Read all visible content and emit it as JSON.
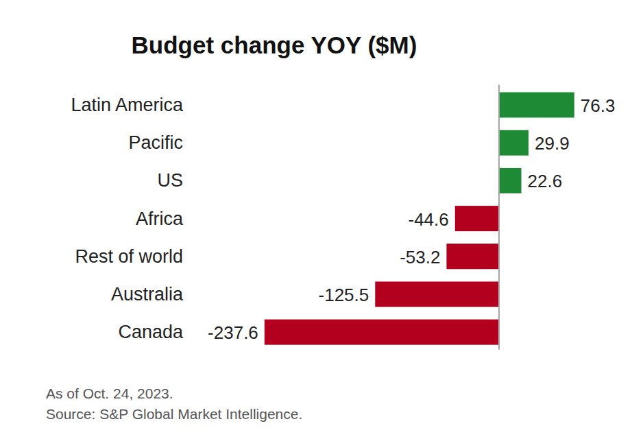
{
  "chart_data": {
    "type": "bar",
    "title": "Budget change YOY ($M)",
    "orientation": "horizontal",
    "categories": [
      "Latin America",
      "Pacific",
      "US",
      "Africa",
      "Rest of world",
      "Australia",
      "Canada"
    ],
    "values": [
      76.3,
      29.9,
      22.6,
      -44.6,
      -53.2,
      -125.5,
      -237.6
    ],
    "colors": [
      "#1e8a36",
      "#1e8a36",
      "#1e8a36",
      "#b3001e",
      "#b3001e",
      "#b3001e",
      "#b3001e"
    ],
    "xlim": [
      -240,
      80
    ],
    "tick_labels": false,
    "grid": false,
    "data_labels": true,
    "note": "As of Oct. 24, 2023.",
    "source": "Source: S&P Global Market Intelligence."
  }
}
